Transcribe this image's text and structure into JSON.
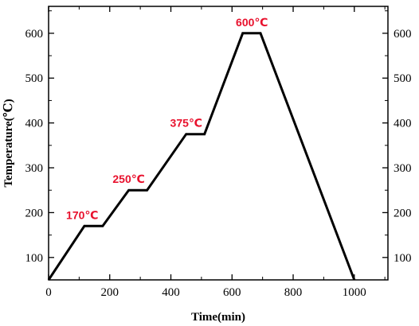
{
  "chart_data": {
    "type": "line",
    "title": "",
    "xlabel": "Time(min)",
    "ylabel": "Temperature(℃)",
    "xlim": [
      0,
      1110
    ],
    "ylim": [
      50,
      660
    ],
    "x_ticks": [
      0,
      200,
      400,
      600,
      800,
      1000
    ],
    "y_ticks": [
      100,
      200,
      300,
      400,
      500,
      600
    ],
    "grid": false,
    "series": [
      {
        "color": "#000000",
        "points": [
          {
            "x": 0,
            "y": 50
          },
          {
            "x": 117,
            "y": 170
          },
          {
            "x": 177,
            "y": 170
          },
          {
            "x": 262,
            "y": 250
          },
          {
            "x": 322,
            "y": 250
          },
          {
            "x": 450,
            "y": 375
          },
          {
            "x": 510,
            "y": 375
          },
          {
            "x": 635,
            "y": 600
          },
          {
            "x": 693,
            "y": 600
          },
          {
            "x": 1000,
            "y": 50
          }
        ]
      }
    ],
    "annotations": [
      {
        "text": "170℃",
        "x": 110,
        "y": 170,
        "color": "#e8112d"
      },
      {
        "text": "250℃",
        "x": 262,
        "y": 250,
        "color": "#e8112d"
      },
      {
        "text": "375℃",
        "x": 450,
        "y": 375,
        "color": "#e8112d"
      },
      {
        "text": "600℃",
        "x": 665,
        "y": 600,
        "color": "#e8112d"
      }
    ]
  }
}
